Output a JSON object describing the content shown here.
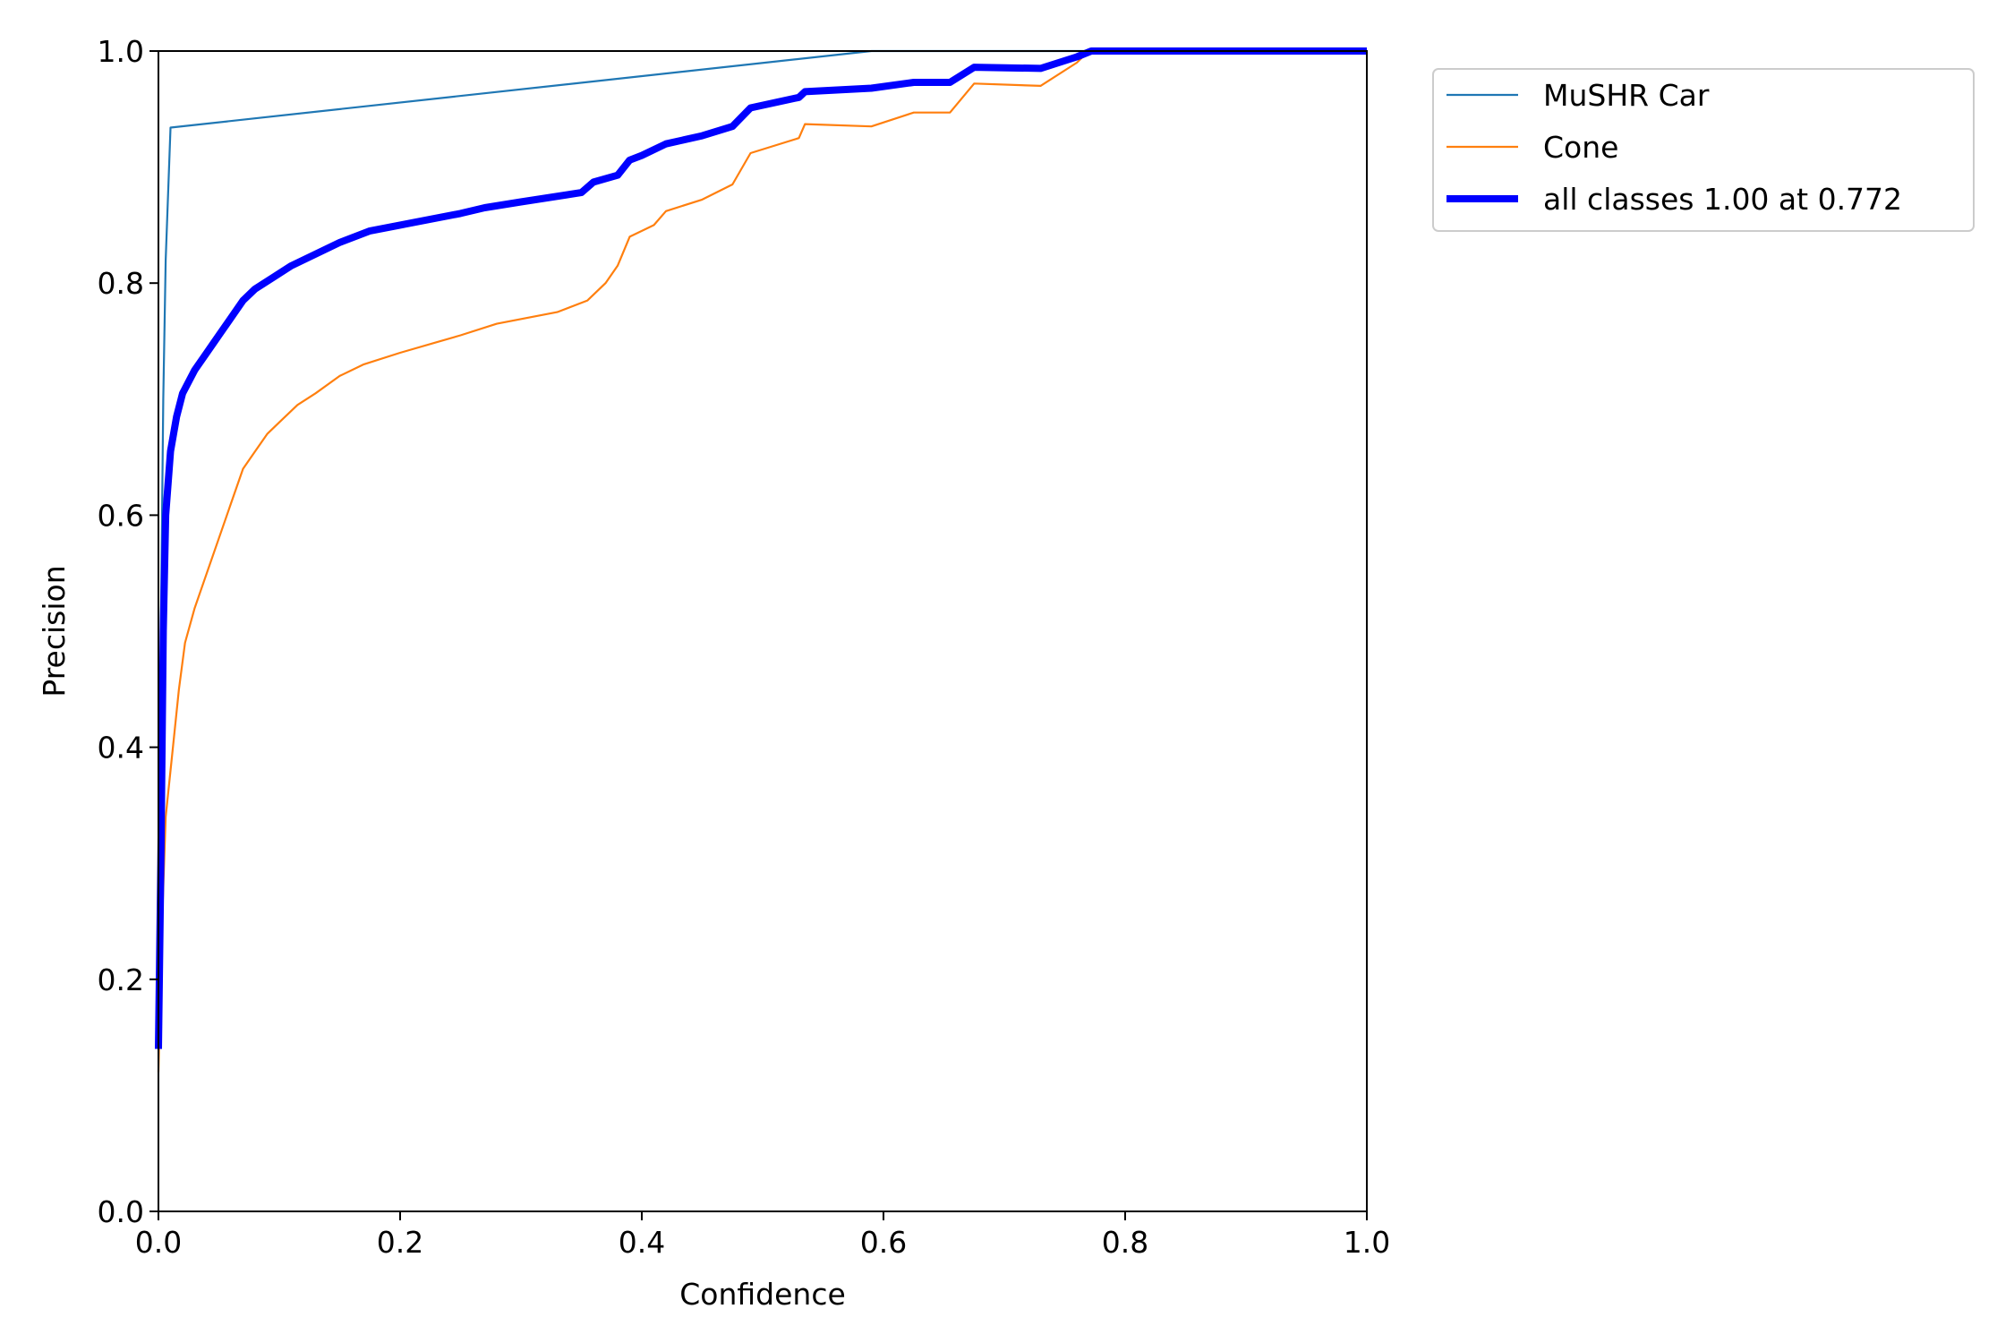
{
  "chart_data": {
    "type": "line",
    "title": "",
    "xlabel": "Confidence",
    "ylabel": "Precision",
    "xlim": [
      0.0,
      1.0
    ],
    "ylim": [
      0.0,
      1.0
    ],
    "grid": false,
    "legend_position": "outside-top-right",
    "x_ticks": [
      "0.0",
      "0.2",
      "0.4",
      "0.6",
      "0.8",
      "1.0"
    ],
    "y_ticks": [
      "0.0",
      "0.2",
      "0.4",
      "0.6",
      "0.8",
      "1.0"
    ],
    "series": [
      {
        "name": "MuSHR Car",
        "color": "#1f77b4",
        "linewidth": "thin",
        "points": [
          [
            0.0,
            0.15
          ],
          [
            0.002,
            0.5
          ],
          [
            0.004,
            0.7
          ],
          [
            0.006,
            0.82
          ],
          [
            0.01,
            0.934
          ],
          [
            0.59,
            1.0
          ],
          [
            1.0,
            1.0
          ]
        ]
      },
      {
        "name": "Cone",
        "color": "#ff7f0e",
        "linewidth": "thin",
        "points": [
          [
            0.0,
            0.12
          ],
          [
            0.003,
            0.25
          ],
          [
            0.006,
            0.34
          ],
          [
            0.012,
            0.4
          ],
          [
            0.017,
            0.45
          ],
          [
            0.022,
            0.49
          ],
          [
            0.03,
            0.52
          ],
          [
            0.04,
            0.55
          ],
          [
            0.05,
            0.58
          ],
          [
            0.06,
            0.61
          ],
          [
            0.07,
            0.64
          ],
          [
            0.08,
            0.655
          ],
          [
            0.09,
            0.67
          ],
          [
            0.1,
            0.68
          ],
          [
            0.115,
            0.695
          ],
          [
            0.13,
            0.705
          ],
          [
            0.15,
            0.72
          ],
          [
            0.17,
            0.73
          ],
          [
            0.2,
            0.74
          ],
          [
            0.25,
            0.755
          ],
          [
            0.28,
            0.765
          ],
          [
            0.33,
            0.775
          ],
          [
            0.355,
            0.785
          ],
          [
            0.37,
            0.8
          ],
          [
            0.38,
            0.815
          ],
          [
            0.39,
            0.84
          ],
          [
            0.41,
            0.85
          ],
          [
            0.42,
            0.862
          ],
          [
            0.45,
            0.872
          ],
          [
            0.475,
            0.885
          ],
          [
            0.49,
            0.912
          ],
          [
            0.53,
            0.925
          ],
          [
            0.535,
            0.937
          ],
          [
            0.59,
            0.935
          ],
          [
            0.625,
            0.947
          ],
          [
            0.655,
            0.947
          ],
          [
            0.675,
            0.972
          ],
          [
            0.73,
            0.97
          ],
          [
            0.76,
            0.99
          ],
          [
            0.77,
            1.0
          ],
          [
            1.0,
            1.0
          ]
        ]
      },
      {
        "name": "all classes 1.00 at 0.772",
        "color": "#0000ff",
        "linewidth": "thick",
        "points": [
          [
            0.0,
            0.14
          ],
          [
            0.002,
            0.3
          ],
          [
            0.004,
            0.5
          ],
          [
            0.006,
            0.6
          ],
          [
            0.01,
            0.655
          ],
          [
            0.015,
            0.685
          ],
          [
            0.02,
            0.705
          ],
          [
            0.03,
            0.725
          ],
          [
            0.04,
            0.74
          ],
          [
            0.05,
            0.755
          ],
          [
            0.06,
            0.77
          ],
          [
            0.07,
            0.785
          ],
          [
            0.08,
            0.795
          ],
          [
            0.095,
            0.805
          ],
          [
            0.11,
            0.815
          ],
          [
            0.13,
            0.825
          ],
          [
            0.15,
            0.835
          ],
          [
            0.175,
            0.845
          ],
          [
            0.2,
            0.85
          ],
          [
            0.25,
            0.86
          ],
          [
            0.27,
            0.865
          ],
          [
            0.3,
            0.87
          ],
          [
            0.35,
            0.878
          ],
          [
            0.36,
            0.887
          ],
          [
            0.38,
            0.893
          ],
          [
            0.39,
            0.906
          ],
          [
            0.4,
            0.91
          ],
          [
            0.42,
            0.92
          ],
          [
            0.45,
            0.927
          ],
          [
            0.475,
            0.935
          ],
          [
            0.49,
            0.951
          ],
          [
            0.53,
            0.96
          ],
          [
            0.535,
            0.965
          ],
          [
            0.59,
            0.968
          ],
          [
            0.625,
            0.973
          ],
          [
            0.655,
            0.973
          ],
          [
            0.675,
            0.986
          ],
          [
            0.73,
            0.985
          ],
          [
            0.76,
            0.995
          ],
          [
            0.772,
            1.0
          ],
          [
            1.0,
            1.0
          ]
        ]
      }
    ]
  }
}
